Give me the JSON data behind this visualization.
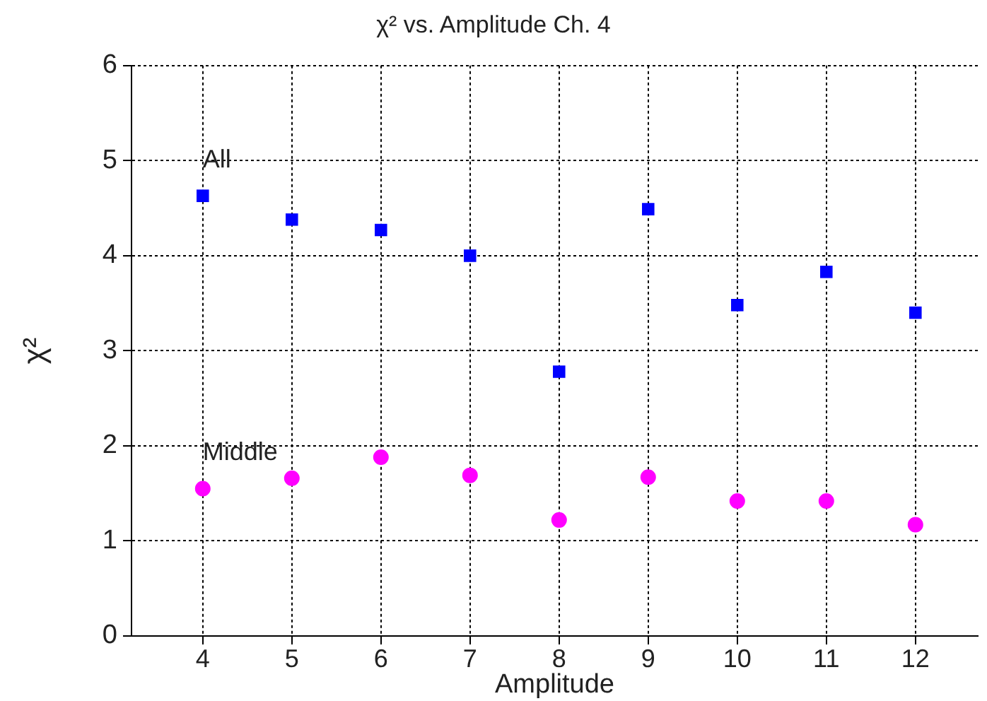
{
  "chart_data": {
    "type": "scatter",
    "title": "χ² vs. Amplitude Ch. 4",
    "xlabel": "Amplitude",
    "ylabel": "χ²",
    "x": [
      4,
      5,
      6,
      7,
      8,
      9,
      10,
      11,
      12
    ],
    "series": [
      {
        "name": "All",
        "color": "#0000ff",
        "marker": "square",
        "values": [
          4.63,
          4.38,
          4.27,
          4.0,
          2.78,
          4.49,
          3.48,
          3.83,
          3.4
        ]
      },
      {
        "name": "Middle",
        "color": "#ff00ff",
        "marker": "circle",
        "values": [
          1.55,
          1.66,
          1.88,
          1.69,
          1.22,
          1.67,
          1.42,
          1.42,
          1.17
        ]
      }
    ],
    "xlim": [
      3.2,
      12.7
    ],
    "xticks": [
      4,
      5,
      6,
      7,
      8,
      9,
      10,
      11,
      12
    ],
    "ylim": [
      0,
      6
    ],
    "yticks": [
      0,
      1,
      2,
      3,
      4,
      5,
      6
    ],
    "grid": true,
    "legend": false
  }
}
